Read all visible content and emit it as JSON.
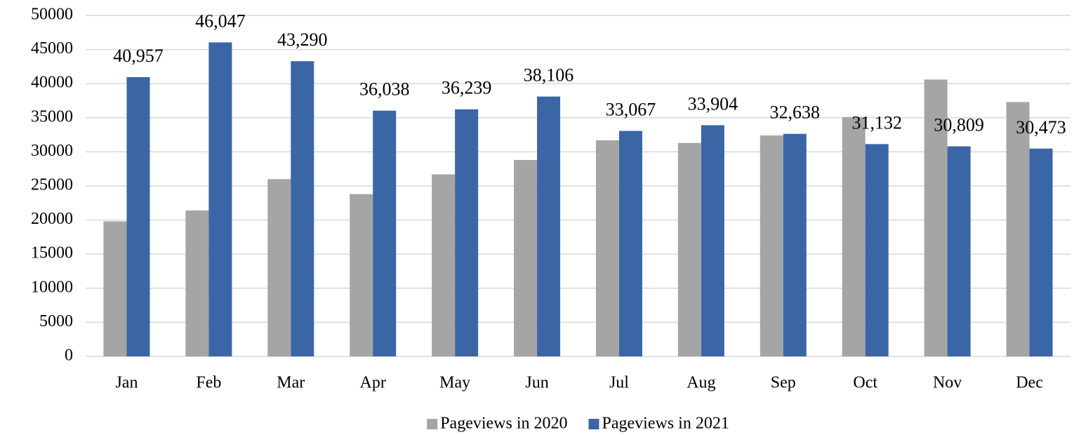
{
  "chart_data": {
    "type": "bar",
    "categories": [
      "Jan",
      "Feb",
      "Mar",
      "Apr",
      "May",
      "Jun",
      "Jul",
      "Aug",
      "Sep",
      "Oct",
      "Nov",
      "Dec"
    ],
    "series": [
      {
        "name": "Pageviews in 2020",
        "color": "#a5a5a5",
        "values": [
          19800,
          21400,
          26000,
          23800,
          26700,
          28800,
          31700,
          31300,
          32400,
          35100,
          40600,
          37300
        ]
      },
      {
        "name": "Pageviews in 2021",
        "color": "#3b66a6",
        "values": [
          40957,
          46047,
          43290,
          36038,
          36239,
          38106,
          33067,
          33904,
          32638,
          31132,
          30809,
          30473
        ],
        "value_labels": [
          "40,957",
          "46,047",
          "43,290",
          "36,038",
          "36,239",
          "38,106",
          "33,067",
          "33,904",
          "32,638",
          "31,132",
          "30,809",
          "30,473"
        ]
      }
    ],
    "ylim": [
      0,
      50000
    ],
    "yticks": [
      0,
      5000,
      10000,
      15000,
      20000,
      25000,
      30000,
      35000,
      40000,
      45000,
      50000
    ],
    "grid": true,
    "legend": "bottom"
  }
}
